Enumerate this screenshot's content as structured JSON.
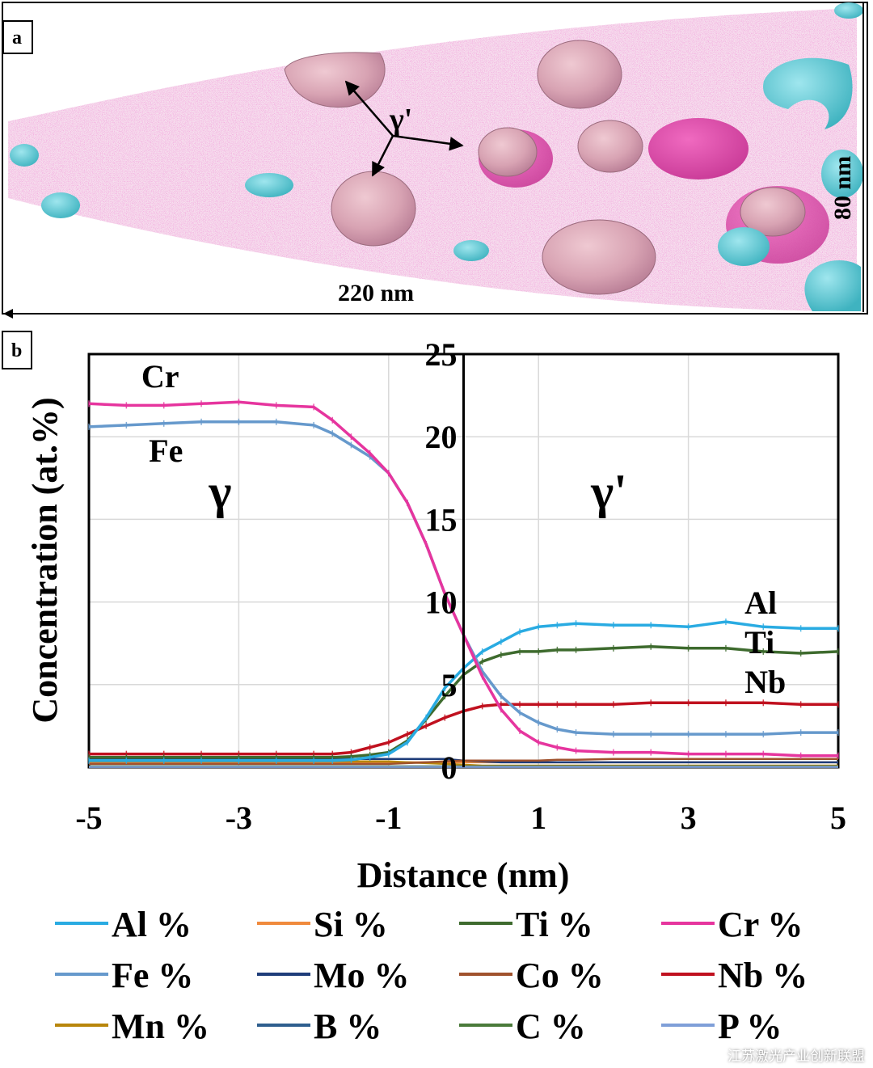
{
  "panels": {
    "a": "a",
    "b": "b"
  },
  "panel_a": {
    "phase_label": "γ'",
    "scale_horizontal": "220 nm",
    "scale_vertical": "80 nm",
    "colors": {
      "matrix_points": "#e040a8",
      "precipitate": "#d9a0b0",
      "cyan_particles": "#55c8d2"
    }
  },
  "watermark": "江苏激光产业创新联盟",
  "chart_data": {
    "type": "line",
    "xlabel": "Distance (nm)",
    "ylabel": "Concentration (at.%)",
    "xlim": [
      -5,
      5
    ],
    "ylim": [
      0,
      25
    ],
    "xticks": [
      -5,
      -3,
      -1,
      1,
      3,
      5
    ],
    "yticks": [
      0,
      5,
      10,
      15,
      20,
      25
    ],
    "grid": true,
    "legend_placement": "bottom",
    "x": [
      -5,
      -4.5,
      -4,
      -3.5,
      -3,
      -2.5,
      -2,
      -1.75,
      -1.5,
      -1.25,
      -1,
      -0.75,
      -0.5,
      -0.25,
      0,
      0.25,
      0.5,
      0.75,
      1,
      1.25,
      1.5,
      2,
      2.5,
      3,
      3.5,
      4,
      4.5,
      5
    ],
    "series": [
      {
        "name": "Al %",
        "color": "#29abe2",
        "values": [
          0.4,
          0.4,
          0.4,
          0.4,
          0.4,
          0.4,
          0.4,
          0.4,
          0.45,
          0.6,
          0.8,
          1.5,
          3.0,
          4.8,
          6.0,
          7.0,
          7.6,
          8.2,
          8.5,
          8.6,
          8.7,
          8.6,
          8.6,
          8.5,
          8.8,
          8.5,
          8.4,
          8.4
        ]
      },
      {
        "name": "Si %",
        "color": "#f08a3c",
        "values": [
          0.3,
          0.3,
          0.3,
          0.3,
          0.3,
          0.3,
          0.3,
          0.3,
          0.3,
          0.3,
          0.3,
          0.3,
          0.3,
          0.3,
          0.3,
          0.3,
          0.3,
          0.3,
          0.3,
          0.3,
          0.3,
          0.3,
          0.3,
          0.3,
          0.3,
          0.3,
          0.3,
          0.3
        ]
      },
      {
        "name": "Ti %",
        "color": "#3e6b2e",
        "values": [
          0.6,
          0.6,
          0.6,
          0.6,
          0.6,
          0.6,
          0.6,
          0.6,
          0.65,
          0.75,
          0.9,
          1.6,
          2.9,
          4.3,
          5.6,
          6.4,
          6.8,
          7.0,
          7.0,
          7.1,
          7.1,
          7.2,
          7.3,
          7.2,
          7.2,
          7.0,
          6.9,
          7.0
        ]
      },
      {
        "name": "Cr %",
        "color": "#e6359e",
        "values": [
          22.0,
          21.9,
          21.9,
          22.0,
          22.1,
          21.9,
          21.8,
          21.0,
          20.0,
          19.0,
          17.8,
          16.0,
          13.5,
          10.5,
          8.0,
          5.5,
          3.5,
          2.2,
          1.5,
          1.2,
          1.0,
          0.9,
          0.9,
          0.8,
          0.8,
          0.8,
          0.7,
          0.7
        ]
      },
      {
        "name": "Fe %",
        "color": "#6699cc",
        "values": [
          20.6,
          20.7,
          20.8,
          20.9,
          20.9,
          20.9,
          20.7,
          20.2,
          19.5,
          18.8,
          17.8,
          16.0,
          13.5,
          10.5,
          8.0,
          5.8,
          4.3,
          3.3,
          2.7,
          2.3,
          2.1,
          2.0,
          2.0,
          2.0,
          2.0,
          2.0,
          2.1,
          2.1
        ]
      },
      {
        "name": "Mo %",
        "color": "#1f3d7a",
        "values": [
          0.5,
          0.5,
          0.5,
          0.5,
          0.5,
          0.5,
          0.5,
          0.5,
          0.5,
          0.5,
          0.5,
          0.5,
          0.5,
          0.5,
          0.4,
          0.35,
          0.3,
          0.3,
          0.3,
          0.3,
          0.3,
          0.3,
          0.3,
          0.3,
          0.3,
          0.3,
          0.3,
          0.3
        ]
      },
      {
        "name": "Co %",
        "color": "#a0522d",
        "values": [
          0.2,
          0.2,
          0.2,
          0.2,
          0.2,
          0.2,
          0.2,
          0.2,
          0.2,
          0.2,
          0.2,
          0.25,
          0.3,
          0.35,
          0.4,
          0.4,
          0.4,
          0.4,
          0.4,
          0.45,
          0.45,
          0.5,
          0.5,
          0.5,
          0.5,
          0.5,
          0.5,
          0.5
        ]
      },
      {
        "name": "Nb %",
        "color": "#c0111f",
        "values": [
          0.8,
          0.8,
          0.8,
          0.8,
          0.8,
          0.8,
          0.8,
          0.8,
          0.9,
          1.2,
          1.5,
          2.0,
          2.5,
          3.0,
          3.4,
          3.7,
          3.8,
          3.8,
          3.8,
          3.8,
          3.8,
          3.8,
          3.9,
          3.9,
          3.9,
          3.9,
          3.8,
          3.8
        ]
      },
      {
        "name": "Mn %",
        "color": "#b8860b",
        "values": [
          0.35,
          0.35,
          0.35,
          0.35,
          0.35,
          0.35,
          0.35,
          0.35,
          0.35,
          0.35,
          0.35,
          0.3,
          0.25,
          0.2,
          0.15,
          0.1,
          0.1,
          0.1,
          0.1,
          0.1,
          0.1,
          0.1,
          0.1,
          0.1,
          0.1,
          0.1,
          0.1,
          0.1
        ]
      },
      {
        "name": "B %",
        "color": "#2e5e8e",
        "values": [
          0.05,
          0.05,
          0.05,
          0.05,
          0.05,
          0.05,
          0.05,
          0.05,
          0.05,
          0.05,
          0.05,
          0.05,
          0.05,
          0.05,
          0.05,
          0.05,
          0.05,
          0.05,
          0.05,
          0.05,
          0.05,
          0.05,
          0.05,
          0.05,
          0.05,
          0.05,
          0.05,
          0.05
        ]
      },
      {
        "name": "C %",
        "color": "#4a7a3a",
        "values": [
          0.05,
          0.05,
          0.05,
          0.05,
          0.05,
          0.05,
          0.05,
          0.05,
          0.05,
          0.05,
          0.05,
          0.05,
          0.05,
          0.05,
          0.05,
          0.05,
          0.05,
          0.05,
          0.05,
          0.05,
          0.05,
          0.05,
          0.05,
          0.05,
          0.05,
          0.05,
          0.05,
          0.05
        ]
      },
      {
        "name": "P %",
        "color": "#7f9fd8",
        "values": [
          0.02,
          0.02,
          0.02,
          0.02,
          0.02,
          0.02,
          0.02,
          0.02,
          0.02,
          0.02,
          0.02,
          0.02,
          0.02,
          0.02,
          0.02,
          0.02,
          0.02,
          0.02,
          0.02,
          0.02,
          0.02,
          0.02,
          0.02,
          0.02,
          0.02,
          0.02,
          0.02,
          0.02
        ]
      }
    ],
    "annotations": [
      {
        "text": "Cr",
        "x": -4.3,
        "y": 23.0
      },
      {
        "text": "Fe",
        "x": -4.2,
        "y": 18.5
      },
      {
        "text": "γ",
        "x": -3.4,
        "y": 15.7
      },
      {
        "text": "γ'",
        "x": 1.7,
        "y": 15.7
      },
      {
        "text": "Al",
        "x": 3.75,
        "y": 9.3
      },
      {
        "text": "Ti",
        "x": 3.75,
        "y": 6.9
      },
      {
        "text": "Nb",
        "x": 3.75,
        "y": 4.5
      }
    ],
    "interface_x": 0
  }
}
